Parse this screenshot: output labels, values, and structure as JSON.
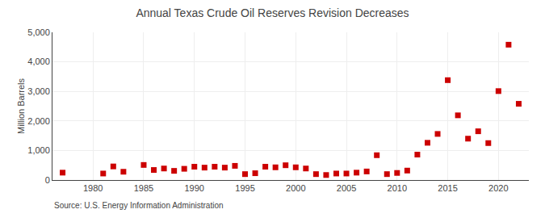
{
  "chart_data": {
    "type": "scatter",
    "title": "Annual Texas Crude Oil Reserves Revision Decreases",
    "ylabel": "Million Barrels",
    "annotations": [
      "Source: U.S. Energy Information Administration"
    ],
    "x": [
      1977,
      1981,
      1982,
      1983,
      1985,
      1986,
      1987,
      1988,
      1989,
      1990,
      1991,
      1992,
      1993,
      1994,
      1995,
      1996,
      1997,
      1998,
      1999,
      2000,
      2001,
      2002,
      2003,
      2004,
      2005,
      2006,
      2007,
      2008,
      2009,
      2010,
      2011,
      2012,
      2013,
      2014,
      2015,
      2016,
      2017,
      2018,
      2019,
      2020,
      2021,
      2022
    ],
    "values": [
      250,
      220,
      460,
      280,
      510,
      340,
      390,
      310,
      380,
      450,
      420,
      450,
      420,
      480,
      200,
      230,
      450,
      430,
      500,
      430,
      390,
      200,
      170,
      220,
      220,
      250,
      290,
      840,
      200,
      240,
      320,
      860,
      1260,
      1560,
      3380,
      2190,
      1400,
      1650,
      1250,
      3010,
      4580,
      2580
    ],
    "color": "#cc0000",
    "marker": "square",
    "xlim": [
      1976,
      2023
    ],
    "xticks": [
      1980,
      1985,
      1990,
      1995,
      2000,
      2005,
      2010,
      2015,
      2020
    ],
    "ylim": [
      0,
      5000
    ],
    "yticks": [
      0,
      {
        "value": 1000,
        "label": "1,000"
      },
      {
        "value": 2000,
        "label": "2,000"
      },
      {
        "value": 3000,
        "label": "3,000"
      },
      {
        "value": 4000,
        "label": "4,000"
      },
      {
        "value": 5000,
        "label": "5,000"
      }
    ],
    "grid": true
  }
}
